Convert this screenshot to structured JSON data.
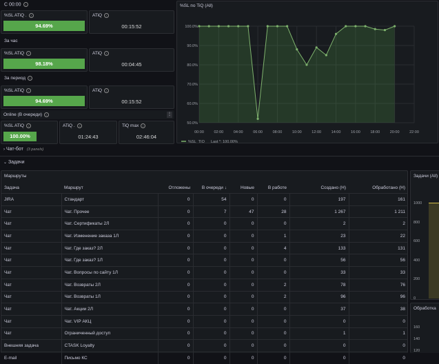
{
  "top": {
    "label": "С 00:00"
  },
  "stats": {
    "row1": {
      "sl_label": "%SL ATiQ .",
      "sl_value": "94.69%",
      "atiq_label": "ATiQ",
      "atiq_value": "00:15:52"
    },
    "hour_label": "За час",
    "row2": {
      "sl_label": "%SL ATiQ",
      "sl_value": "98.18%",
      "atiq_label": "ATiQ",
      "atiq_value": "00:04:45"
    },
    "period_label": "За период",
    "row3": {
      "sl_label": "%SL ATiQ",
      "sl_value": "94.69%",
      "atiq_label": "ATiQ",
      "atiq_value": "00:15:52"
    },
    "online_label": "Online (В очереди)",
    "row4": {
      "sl_label": "%SL ATiQ",
      "sl_value": "100.00%",
      "atiq_label": "ATiQ .",
      "atiq_value": "01:24:43",
      "tiq_label": "TiQ max",
      "tiq_value": "02:46:04"
    }
  },
  "colors": {
    "green": "#56a64b",
    "line": "#7eb26d",
    "bg": "#111217",
    "panel": "#181b1f"
  },
  "chart_data": {
    "type": "line",
    "title": "%SL по TiQ (All)",
    "x": [
      "00:00",
      "01:00",
      "02:00",
      "03:00",
      "04:00",
      "05:00",
      "06:00",
      "07:00",
      "08:00",
      "09:00",
      "10:00",
      "11:00",
      "12:00",
      "13:00",
      "14:00",
      "15:00",
      "16:00",
      "17:00",
      "18:00",
      "19:00",
      "20:00"
    ],
    "series": [
      {
        "name": "%SL_TIQ",
        "values": [
          100,
          100,
          100,
          100,
          100,
          100,
          52,
          100,
          100,
          100,
          88,
          80,
          89,
          85,
          96,
          100,
          100,
          100,
          98.5,
          98,
          100
        ]
      }
    ],
    "xticks": [
      "00:00",
      "02:00",
      "04:00",
      "06:00",
      "08:00",
      "10:00",
      "12:00",
      "14:00",
      "16:00",
      "18:00",
      "20:00",
      "22:00"
    ],
    "yticks": [
      "100.0%",
      "90.0%",
      "80.0%",
      "70.0%",
      "60.0%",
      "50.0%"
    ],
    "ylim": [
      50,
      100
    ],
    "legend_text": "Last *: 100.00%",
    "legend_position": "bottom-left"
  },
  "sections": {
    "chatbot": "Чат-бот",
    "chatbot_note": "(3 panels)",
    "tasks": "Задачи"
  },
  "routes": {
    "title": "Маршруты",
    "columns": [
      "Задача",
      "Маршрут",
      "Отложены",
      "В очереди ↓",
      "Новые",
      "В работе",
      "Создано (Н)",
      "Обработано (Н)"
    ],
    "rows": [
      [
        "JIRA",
        "Стандарт",
        "0",
        "54",
        "0",
        "0",
        "197",
        "161"
      ],
      [
        "Чат",
        "Чат. Прочее",
        "0",
        "7",
        "47",
        "28",
        "1 267",
        "1 211"
      ],
      [
        "Чат",
        "Чат. Сертификаты 2Л",
        "0",
        "0",
        "0",
        "0",
        "2",
        "2"
      ],
      [
        "Чат",
        "Чат. Изменение заказа 1Л",
        "0",
        "0",
        "0",
        "1",
        "23",
        "22"
      ],
      [
        "Чат",
        "Чат. Где заказ? 2Л",
        "0",
        "0",
        "0",
        "4",
        "133",
        "131"
      ],
      [
        "Чат",
        "Чат. Где заказ? 1Л",
        "0",
        "0",
        "0",
        "0",
        "56",
        "56"
      ],
      [
        "Чат",
        "Чат. Вопросы по сайту 1Л",
        "0",
        "0",
        "0",
        "0",
        "33",
        "33"
      ],
      [
        "Чат",
        "Чат. Возвраты 2Л",
        "0",
        "0",
        "0",
        "2",
        "78",
        "76"
      ],
      [
        "Чат",
        "Чат. Возвраты 1Л",
        "0",
        "0",
        "0",
        "2",
        "96",
        "96"
      ],
      [
        "Чат",
        "Чат. Акции 2Л",
        "0",
        "0",
        "0",
        "0",
        "37",
        "38"
      ],
      [
        "Чат",
        "Чат. VIP АКЦ",
        "0",
        "0",
        "0",
        "0",
        "0",
        "0"
      ],
      [
        "Чат",
        "Ограниченный доступ",
        "0",
        "0",
        "0",
        "0",
        "1",
        "1"
      ],
      [
        "Внешняя задача",
        "CTASK Loyalty",
        "0",
        "0",
        "0",
        "0",
        "0",
        "0"
      ],
      [
        "E-mail",
        "Письмо КС",
        "0",
        "0",
        "0",
        "0",
        "0",
        "0"
      ]
    ]
  },
  "right_panels": {
    "top_title": "Задачи (All)",
    "top_yticks": [
      "1000",
      "800",
      "600",
      "400",
      "200",
      "0"
    ],
    "bottom_title": "Обработка",
    "bottom_yticks": [
      "160",
      "140",
      "120"
    ]
  }
}
